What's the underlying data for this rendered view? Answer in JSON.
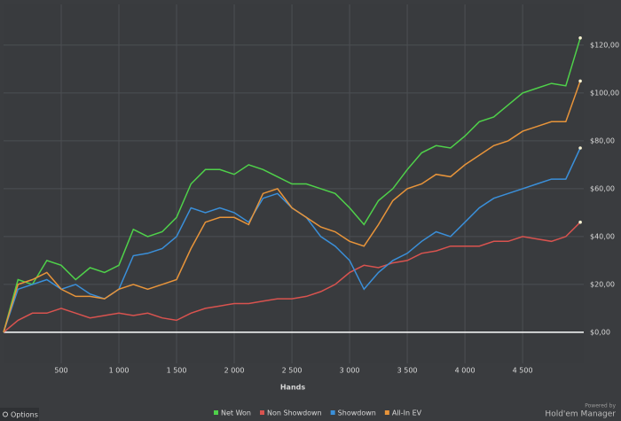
{
  "chart_data": {
    "type": "line",
    "x_label": "Hands",
    "x": [
      0,
      125,
      250,
      375,
      500,
      625,
      750,
      875,
      1000,
      1125,
      1250,
      1375,
      1500,
      1625,
      1750,
      1875,
      2000,
      2125,
      2250,
      2375,
      2500,
      2625,
      2750,
      2875,
      3000,
      3125,
      3250,
      3375,
      3500,
      3625,
      3750,
      3875,
      4000,
      4125,
      4250,
      4375,
      4500,
      4625,
      4750,
      4875,
      5000
    ],
    "series": [
      {
        "name": "Net Won",
        "color": "#4fd14a",
        "values": [
          0,
          22,
          20,
          30,
          28,
          22,
          27,
          25,
          28,
          43,
          40,
          42,
          48,
          62,
          68,
          68,
          66,
          70,
          68,
          65,
          62,
          62,
          60,
          58,
          52,
          45,
          55,
          60,
          68,
          75,
          78,
          77,
          82,
          88,
          90,
          95,
          100,
          102,
          104,
          103,
          123
        ]
      },
      {
        "name": "Non Showdown",
        "color": "#d9534f",
        "values": [
          0,
          5,
          8,
          8,
          10,
          8,
          6,
          7,
          8,
          7,
          8,
          6,
          5,
          8,
          10,
          11,
          12,
          12,
          13,
          14,
          14,
          15,
          17,
          20,
          25,
          28,
          27,
          29,
          30,
          33,
          34,
          36,
          36,
          36,
          38,
          38,
          40,
          39,
          38,
          40,
          46
        ]
      },
      {
        "name": "Showdown",
        "color": "#3a8fd9",
        "values": [
          0,
          18,
          20,
          22,
          18,
          20,
          16,
          14,
          18,
          32,
          33,
          35,
          40,
          52,
          50,
          52,
          50,
          46,
          56,
          58,
          52,
          48,
          40,
          36,
          30,
          18,
          25,
          30,
          33,
          38,
          42,
          40,
          46,
          52,
          56,
          58,
          60,
          62,
          64,
          64,
          77
        ]
      },
      {
        "name": "All-In EV",
        "color": "#e8943a",
        "values": [
          0,
          20,
          22,
          25,
          18,
          15,
          15,
          14,
          18,
          20,
          18,
          20,
          22,
          35,
          46,
          48,
          48,
          45,
          58,
          60,
          52,
          48,
          44,
          42,
          38,
          36,
          45,
          55,
          60,
          62,
          66,
          65,
          70,
          74,
          78,
          80,
          84,
          86,
          88,
          88,
          105
        ]
      }
    ],
    "xlim": [
      0,
      5030
    ],
    "ylim": [
      -13,
      137
    ],
    "xticks": [
      500,
      {
        "value": 1000,
        "label": "1 000"
      },
      {
        "value": 1500,
        "label": "1 500"
      },
      {
        "value": 2000,
        "label": "2 000"
      },
      {
        "value": 2500,
        "label": "2 500"
      },
      {
        "value": 3000,
        "label": "3 000"
      },
      {
        "value": 3500,
        "label": "3 500"
      },
      {
        "value": 4000,
        "label": "4 000"
      },
      {
        "value": 4500,
        "label": "4 500"
      }
    ],
    "yticks": [
      {
        "value": 0,
        "label": "$0,00"
      },
      {
        "value": 20,
        "label": "$20,00"
      },
      {
        "value": 40,
        "label": "$40,00"
      },
      {
        "value": 60,
        "label": "$60,00"
      },
      {
        "value": 80,
        "label": "$80,00"
      },
      {
        "value": 100,
        "label": "$100,00"
      },
      {
        "value": 120,
        "label": "$120,00"
      }
    ],
    "grid": true,
    "legend": "bottom"
  },
  "ui": {
    "options": "Options",
    "powered_by": "Powered by",
    "brand": "Hold'em Manager"
  }
}
